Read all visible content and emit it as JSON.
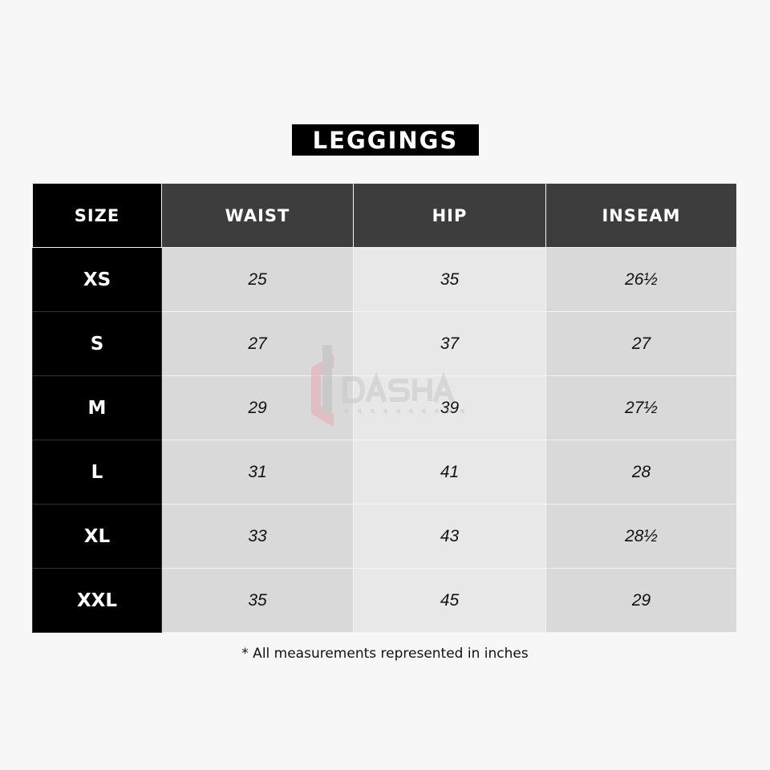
{
  "title": "LEGGINGS",
  "headers": [
    "SIZE",
    "WAIST",
    "HIP",
    "INSEAM"
  ],
  "rows": [
    {
      "size": "XS",
      "waist": "25",
      "hip": "35",
      "inseam": "26½"
    },
    {
      "size": "S",
      "waist": "27",
      "hip": "37",
      "inseam": "27"
    },
    {
      "size": "M",
      "waist": "29",
      "hip": "39",
      "inseam": "27½"
    },
    {
      "size": "L",
      "waist": "31",
      "hip": "41",
      "inseam": "28"
    },
    {
      "size": "XL",
      "waist": "33",
      "hip": "43",
      "inseam": "28½"
    },
    {
      "size": "XXL",
      "waist": "35",
      "hip": "45",
      "inseam": "29"
    }
  ],
  "footnote": "* All measurements represented in inches",
  "watermark": {
    "name": "DASHA",
    "sub": "INDUSTRIES"
  },
  "colors": {
    "header_size": "#000000",
    "header": "#3d3d3d",
    "cell_dark": "#d9d9d9",
    "cell_light": "#e8e8e8",
    "logo_accent": "#e6a9ae"
  }
}
